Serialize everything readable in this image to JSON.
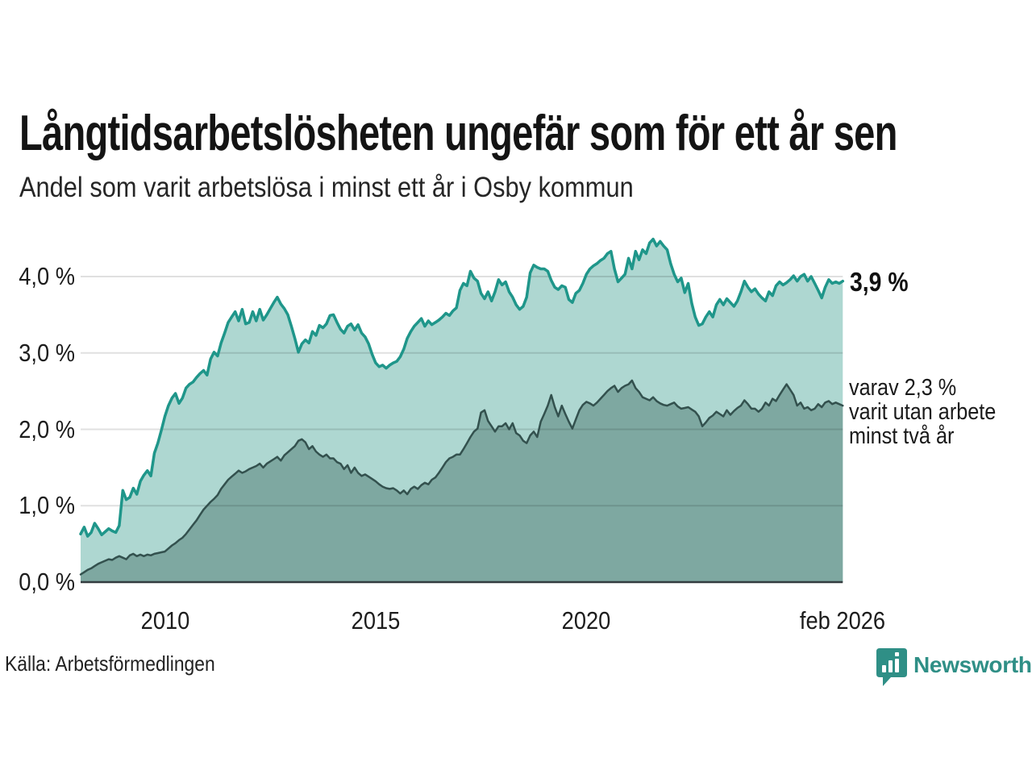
{
  "header": {
    "title": "Långtidsarbetslösheten ungefär som för ett år sen",
    "subtitle": "Andel som varit arbetslösa i minst ett år i Osby kommun"
  },
  "annotations": {
    "end_value_label": "3,9 %",
    "secondary_note_lines": [
      "varav 2,3 %",
      "varit utan arbete",
      "minst två år"
    ]
  },
  "footer": {
    "source": "Källa: Arbetsförmedlingen",
    "brand_name": "Newsworthy",
    "brand_icon": "speech-bubble-bar-chart"
  },
  "colors": {
    "series1_line": "#1f968a",
    "series1_fill": "#aed7d1",
    "series2_line": "#33514e",
    "series2_fill": "#7ea8a1",
    "gridline": "rgba(0,0,0,0.12)",
    "axis": "#333c3f",
    "brand_teal": "#2f8f86"
  },
  "chart_data": {
    "type": "area",
    "title": "Långtidsarbetslösheten ungefär som för ett år sen",
    "subtitle": "Andel som varit arbetslösa i minst ett år i Osby kommun",
    "unit": "%",
    "frequency": "monthly",
    "start_period": "2008-01",
    "end_period": "2026-02",
    "x_axis": {
      "tick_labels": [
        "2010",
        "2015",
        "2020",
        "feb 2026"
      ],
      "tick_times": [
        2010.0,
        2015.0,
        2020.0,
        2026.083
      ],
      "range": [
        2008.0,
        2026.083
      ],
      "grid": false
    },
    "y_axis": {
      "tick_labels": [
        "0,0 %",
        "1,0 %",
        "2,0 %",
        "3,0 %",
        "4,0 %"
      ],
      "tick_values": [
        0,
        1,
        2,
        3,
        4
      ],
      "range": [
        0,
        4.6
      ],
      "grid": true
    },
    "series": [
      {
        "name": "Arbetslösa minst ett år",
        "end_value": 3.9,
        "end_label": "3,9 %",
        "values": [
          0.63,
          0.72,
          0.6,
          0.65,
          0.77,
          0.7,
          0.62,
          0.66,
          0.7,
          0.67,
          0.65,
          0.74,
          1.2,
          1.08,
          1.11,
          1.23,
          1.15,
          1.32,
          1.4,
          1.46,
          1.39,
          1.69,
          1.82,
          1.99,
          2.17,
          2.31,
          2.41,
          2.47,
          2.34,
          2.41,
          2.54,
          2.59,
          2.62,
          2.68,
          2.73,
          2.77,
          2.71,
          2.92,
          3.01,
          2.96,
          3.13,
          3.26,
          3.4,
          3.47,
          3.54,
          3.42,
          3.57,
          3.38,
          3.4,
          3.54,
          3.42,
          3.57,
          3.43,
          3.5,
          3.58,
          3.66,
          3.73,
          3.64,
          3.58,
          3.5,
          3.35,
          3.19,
          3.01,
          3.12,
          3.17,
          3.13,
          3.28,
          3.23,
          3.36,
          3.33,
          3.38,
          3.49,
          3.5,
          3.4,
          3.31,
          3.26,
          3.35,
          3.38,
          3.3,
          3.37,
          3.26,
          3.21,
          3.12,
          2.98,
          2.87,
          2.82,
          2.84,
          2.8,
          2.84,
          2.87,
          2.89,
          2.95,
          3.05,
          3.19,
          3.28,
          3.35,
          3.4,
          3.45,
          3.35,
          3.42,
          3.37,
          3.4,
          3.43,
          3.47,
          3.52,
          3.49,
          3.55,
          3.59,
          3.82,
          3.91,
          3.88,
          4.07,
          3.98,
          3.94,
          3.78,
          3.71,
          3.8,
          3.68,
          3.8,
          3.96,
          3.89,
          3.93,
          3.8,
          3.73,
          3.63,
          3.57,
          3.61,
          3.73,
          4.05,
          4.15,
          4.12,
          4.1,
          4.1,
          4.07,
          3.95,
          3.86,
          3.83,
          3.88,
          3.86,
          3.7,
          3.66,
          3.78,
          3.82,
          3.91,
          4.03,
          4.1,
          4.14,
          4.17,
          4.21,
          4.24,
          4.3,
          4.33,
          4.1,
          3.93,
          3.98,
          4.03,
          4.24,
          4.1,
          4.33,
          4.22,
          4.35,
          4.3,
          4.44,
          4.49,
          4.4,
          4.46,
          4.4,
          4.35,
          4.17,
          4.03,
          3.93,
          3.98,
          3.79,
          3.91,
          3.65,
          3.47,
          3.36,
          3.38,
          3.47,
          3.54,
          3.47,
          3.63,
          3.7,
          3.63,
          3.71,
          3.66,
          3.61,
          3.68,
          3.8,
          3.94,
          3.86,
          3.8,
          3.84,
          3.77,
          3.72,
          3.68,
          3.8,
          3.75,
          3.88,
          3.93,
          3.89,
          3.92,
          3.96,
          4.01,
          3.94,
          4.0,
          4.03,
          3.94,
          4.0,
          3.91,
          3.82,
          3.72,
          3.86,
          3.96,
          3.91,
          3.93,
          3.91,
          3.94
        ]
      },
      {
        "name": "varav utan arbete minst två år",
        "end_value": 2.3,
        "end_label": "varav 2,3 % varit utan arbete minst två år",
        "values": [
          0.1,
          0.13,
          0.16,
          0.18,
          0.21,
          0.24,
          0.26,
          0.28,
          0.3,
          0.29,
          0.32,
          0.34,
          0.32,
          0.3,
          0.35,
          0.37,
          0.34,
          0.36,
          0.34,
          0.36,
          0.35,
          0.37,
          0.38,
          0.39,
          0.4,
          0.44,
          0.48,
          0.51,
          0.55,
          0.58,
          0.63,
          0.69,
          0.75,
          0.81,
          0.88,
          0.95,
          1.0,
          1.05,
          1.09,
          1.14,
          1.22,
          1.28,
          1.34,
          1.38,
          1.42,
          1.46,
          1.43,
          1.45,
          1.48,
          1.5,
          1.52,
          1.55,
          1.5,
          1.55,
          1.58,
          1.61,
          1.64,
          1.59,
          1.66,
          1.7,
          1.74,
          1.78,
          1.85,
          1.87,
          1.83,
          1.74,
          1.78,
          1.71,
          1.67,
          1.64,
          1.67,
          1.62,
          1.62,
          1.57,
          1.55,
          1.48,
          1.53,
          1.43,
          1.5,
          1.43,
          1.39,
          1.41,
          1.38,
          1.35,
          1.32,
          1.28,
          1.25,
          1.23,
          1.22,
          1.23,
          1.2,
          1.16,
          1.2,
          1.15,
          1.22,
          1.25,
          1.22,
          1.27,
          1.3,
          1.28,
          1.34,
          1.37,
          1.43,
          1.5,
          1.57,
          1.62,
          1.64,
          1.67,
          1.67,
          1.74,
          1.82,
          1.9,
          1.97,
          2.01,
          2.22,
          2.25,
          2.11,
          2.04,
          1.97,
          2.04,
          2.04,
          2.08,
          2.0,
          2.08,
          1.95,
          1.92,
          1.85,
          1.82,
          1.92,
          1.97,
          1.9,
          2.1,
          2.2,
          2.31,
          2.45,
          2.29,
          2.17,
          2.31,
          2.2,
          2.1,
          2.01,
          2.13,
          2.25,
          2.32,
          2.36,
          2.34,
          2.31,
          2.35,
          2.4,
          2.45,
          2.5,
          2.54,
          2.57,
          2.49,
          2.54,
          2.57,
          2.59,
          2.64,
          2.54,
          2.49,
          2.42,
          2.4,
          2.38,
          2.42,
          2.37,
          2.34,
          2.32,
          2.31,
          2.33,
          2.35,
          2.3,
          2.27,
          2.28,
          2.29,
          2.26,
          2.23,
          2.17,
          2.04,
          2.09,
          2.15,
          2.18,
          2.23,
          2.2,
          2.17,
          2.25,
          2.19,
          2.24,
          2.28,
          2.31,
          2.38,
          2.33,
          2.27,
          2.27,
          2.23,
          2.27,
          2.35,
          2.31,
          2.4,
          2.37,
          2.45,
          2.52,
          2.59,
          2.52,
          2.45,
          2.31,
          2.35,
          2.27,
          2.29,
          2.25,
          2.27,
          2.33,
          2.29,
          2.35,
          2.37,
          2.33,
          2.35,
          2.33,
          2.31
        ]
      }
    ],
    "legend_position": "right-annotations"
  }
}
